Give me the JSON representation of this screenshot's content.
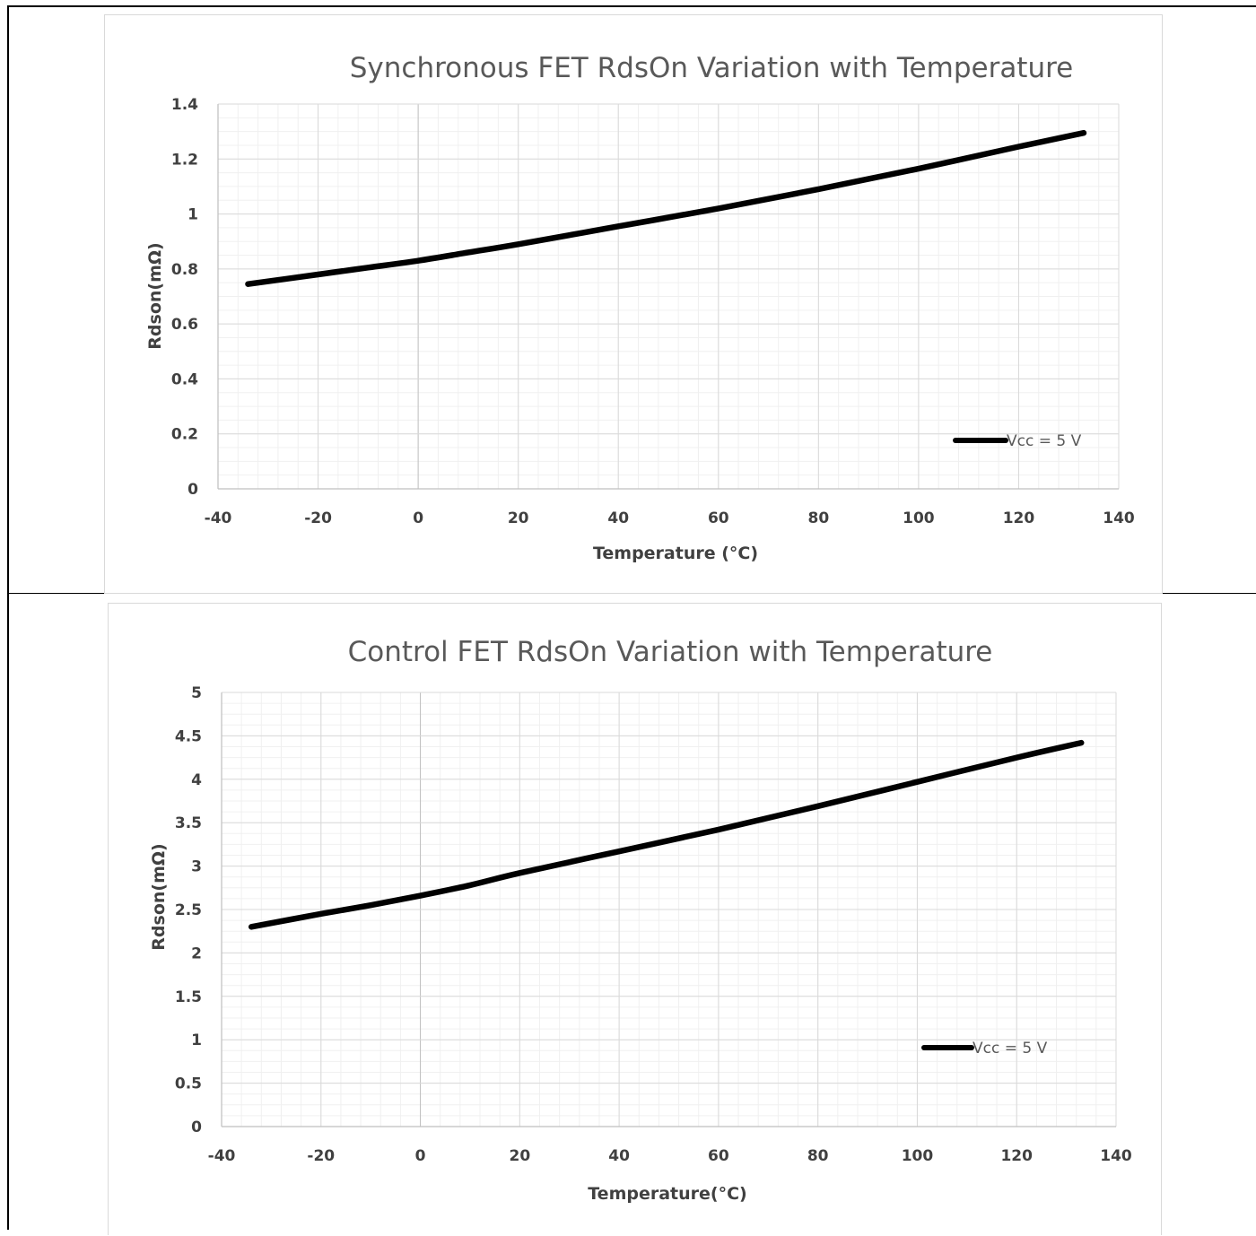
{
  "chart_data": [
    {
      "type": "line",
      "title": "Synchronous FET RdsOn Variation with Temperature",
      "xlabel": "Temperature (°C)",
      "ylabel": "Rdson(mΩ)",
      "xlim": [
        -40,
        140
      ],
      "ylim": [
        0,
        1.4
      ],
      "x_major_step": 20,
      "y_major_step": 0.2,
      "x_minor_per_major": 5,
      "y_minor_per_major": 4,
      "x_ticks": [
        "-40",
        "-20",
        "0",
        "20",
        "40",
        "60",
        "80",
        "100",
        "120",
        "140"
      ],
      "y_ticks": [
        "0",
        "0.2",
        "0.4",
        "0.6",
        "0.8",
        "1",
        "1.2",
        "1.4"
      ],
      "grid": true,
      "legend_position": "bottom-right",
      "series": [
        {
          "name": "Vcc = 5 V",
          "color": "#000000",
          "x": [
            -34,
            -20,
            -10,
            0,
            10,
            20,
            40,
            60,
            80,
            100,
            120,
            133
          ],
          "y": [
            0.745,
            0.78,
            0.805,
            0.83,
            0.86,
            0.89,
            0.955,
            1.02,
            1.09,
            1.165,
            1.245,
            1.295
          ]
        }
      ]
    },
    {
      "type": "line",
      "title": "Control FET RdsOn Variation with Temperature",
      "xlabel": "Temperature(°C)",
      "ylabel": "Rdson(mΩ)",
      "xlim": [
        -40,
        140
      ],
      "ylim": [
        0,
        5
      ],
      "x_major_step": 20,
      "y_major_step": 0.5,
      "x_minor_per_major": 5,
      "y_minor_per_major": 4,
      "x_ticks": [
        "-40",
        "-20",
        "0",
        "20",
        "40",
        "60",
        "80",
        "100",
        "120",
        "140"
      ],
      "y_ticks": [
        "0",
        "0.5",
        "1",
        "1.5",
        "2",
        "2.5",
        "3",
        "3.5",
        "4",
        "4.5",
        "5"
      ],
      "grid": true,
      "legend_position": "bottom-right",
      "series": [
        {
          "name": "Vcc = 5 V",
          "color": "#000000",
          "x": [
            -34,
            -20,
            -10,
            0,
            10,
            20,
            40,
            60,
            80,
            100,
            120,
            133
          ],
          "y": [
            2.3,
            2.45,
            2.55,
            2.66,
            2.78,
            2.92,
            3.17,
            3.42,
            3.69,
            3.97,
            4.25,
            4.42
          ]
        }
      ]
    }
  ]
}
